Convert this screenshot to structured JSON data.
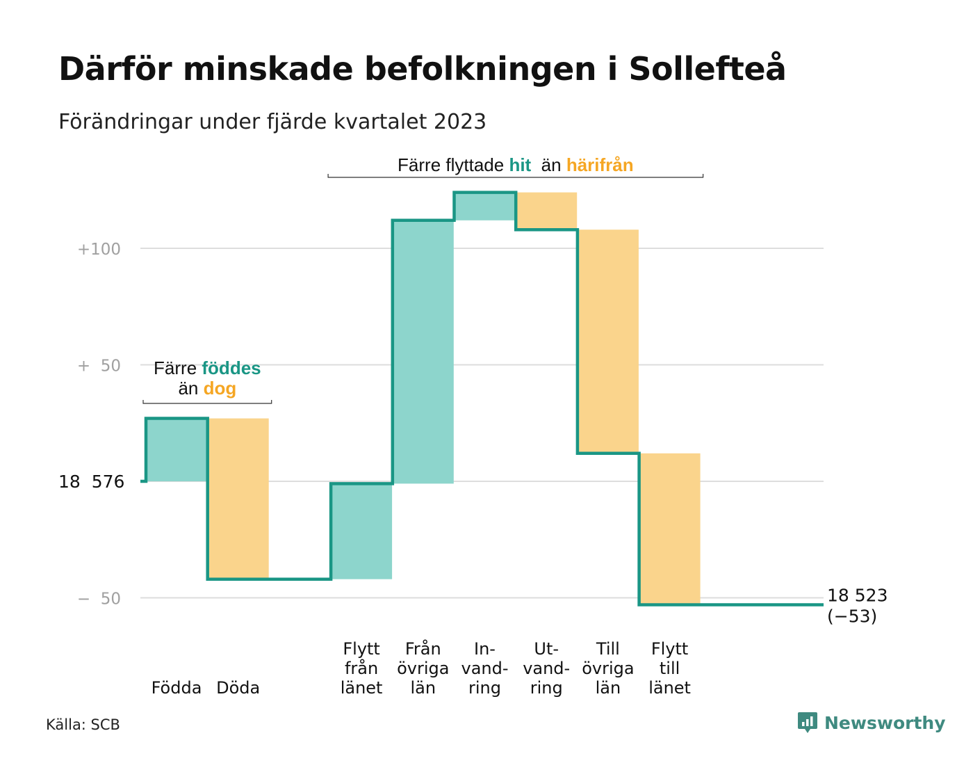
{
  "title": "Därför minskade befolkningen i Sollefteå",
  "subtitle": "Förändringar under fjärde kvartalet 2023",
  "source": "Källa: SCB",
  "brand": "Newsworthy",
  "colors": {
    "positive": "#8dd5cc",
    "negative": "#fad48c",
    "line": "#1a9685",
    "hit": "#1a9685",
    "away": "#f5a623",
    "grid": "#dddddd",
    "ytick": "#a0a0a0"
  },
  "chart_data": {
    "type": "waterfall",
    "start_value": 18576,
    "end_label": "18 523",
    "end_change_label": "(−53)",
    "y_ticks": [
      {
        "value": 100,
        "label": "+100"
      },
      {
        "value": 50,
        "label": "+  50"
      },
      {
        "value": 0,
        "label": "18  576"
      },
      {
        "value": -50,
        "label": "−  50"
      }
    ],
    "ylim": [
      -60,
      125
    ],
    "grid": true,
    "steps": [
      {
        "label": [
          "Födda"
        ],
        "change": 27,
        "kind": "positive"
      },
      {
        "label": [
          "Döda"
        ],
        "change": -69,
        "kind": "negative"
      },
      {
        "label": [],
        "change": 0,
        "kind": "none"
      },
      {
        "label": [
          "Flytt",
          "från",
          "länet"
        ],
        "change": 41,
        "kind": "positive"
      },
      {
        "label": [
          "Från",
          "övriga",
          "län"
        ],
        "change": 113,
        "kind": "positive"
      },
      {
        "label": [
          "In-",
          "vand-",
          "ring"
        ],
        "change": 12,
        "kind": "positive"
      },
      {
        "label": [
          "Ut-",
          "vand-",
          "ring"
        ],
        "change": -16,
        "kind": "negative"
      },
      {
        "label": [
          "Till",
          "övriga",
          "län"
        ],
        "change": -96,
        "kind": "negative"
      },
      {
        "label": [
          "Flytt",
          "till",
          "länet"
        ],
        "change": -65,
        "kind": "negative"
      },
      {
        "label": [],
        "change": 0,
        "kind": "none"
      }
    ],
    "annotations": [
      {
        "lines": [
          [
            {
              "text": "Färre ",
              "style": "plain"
            },
            {
              "text": "föddes",
              "style": "hit"
            }
          ],
          [
            {
              "text": "än ",
              "style": "plain"
            },
            {
              "text": "dog",
              "style": "away"
            }
          ]
        ],
        "from_step": 0,
        "to_step": 1
      },
      {
        "lines": [
          [
            {
              "text": "Färre flyttade ",
              "style": "plain"
            },
            {
              "text": "hit",
              "style": "hit"
            },
            {
              "text": "  än ",
              "style": "plain"
            },
            {
              "text": "härifrån",
              "style": "away"
            }
          ]
        ],
        "from_step": 3,
        "to_step": 8
      }
    ]
  }
}
